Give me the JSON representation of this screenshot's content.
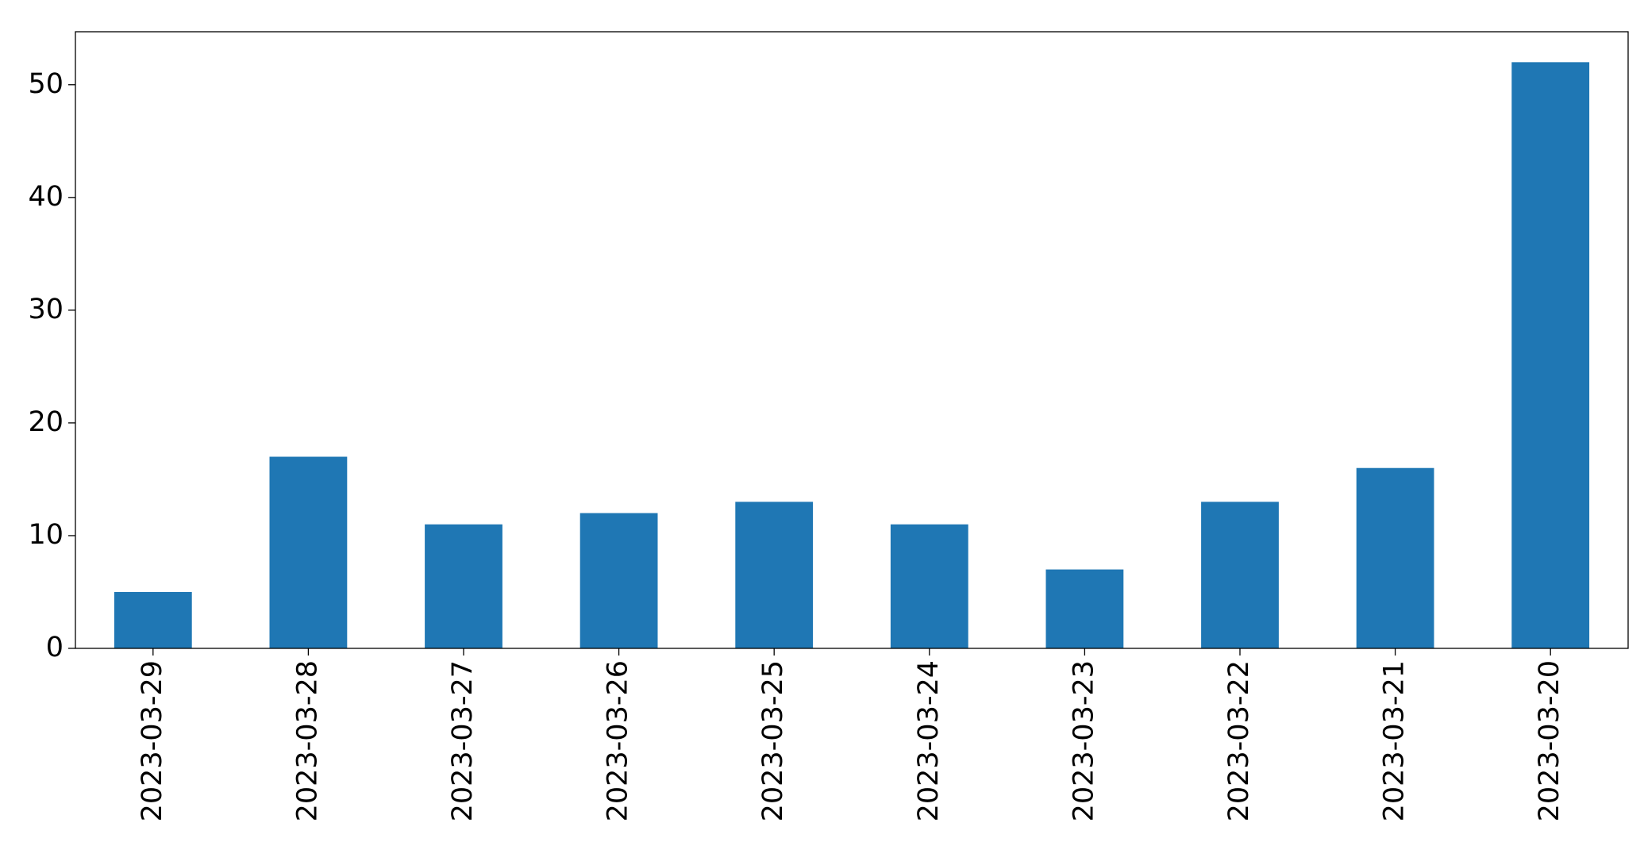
{
  "chart_data": {
    "type": "bar",
    "categories": [
      "2023-03-29",
      "2023-03-28",
      "2023-03-27",
      "2023-03-26",
      "2023-03-25",
      "2023-03-24",
      "2023-03-23",
      "2023-03-22",
      "2023-03-21",
      "2023-03-20"
    ],
    "values": [
      5,
      17,
      11,
      12,
      13,
      11,
      7,
      13,
      16,
      52
    ],
    "color": "#1f77b4",
    "ylim": [
      0,
      54.7
    ],
    "yticks": [
      0,
      10,
      20,
      30,
      40,
      50
    ],
    "grid": false
  }
}
